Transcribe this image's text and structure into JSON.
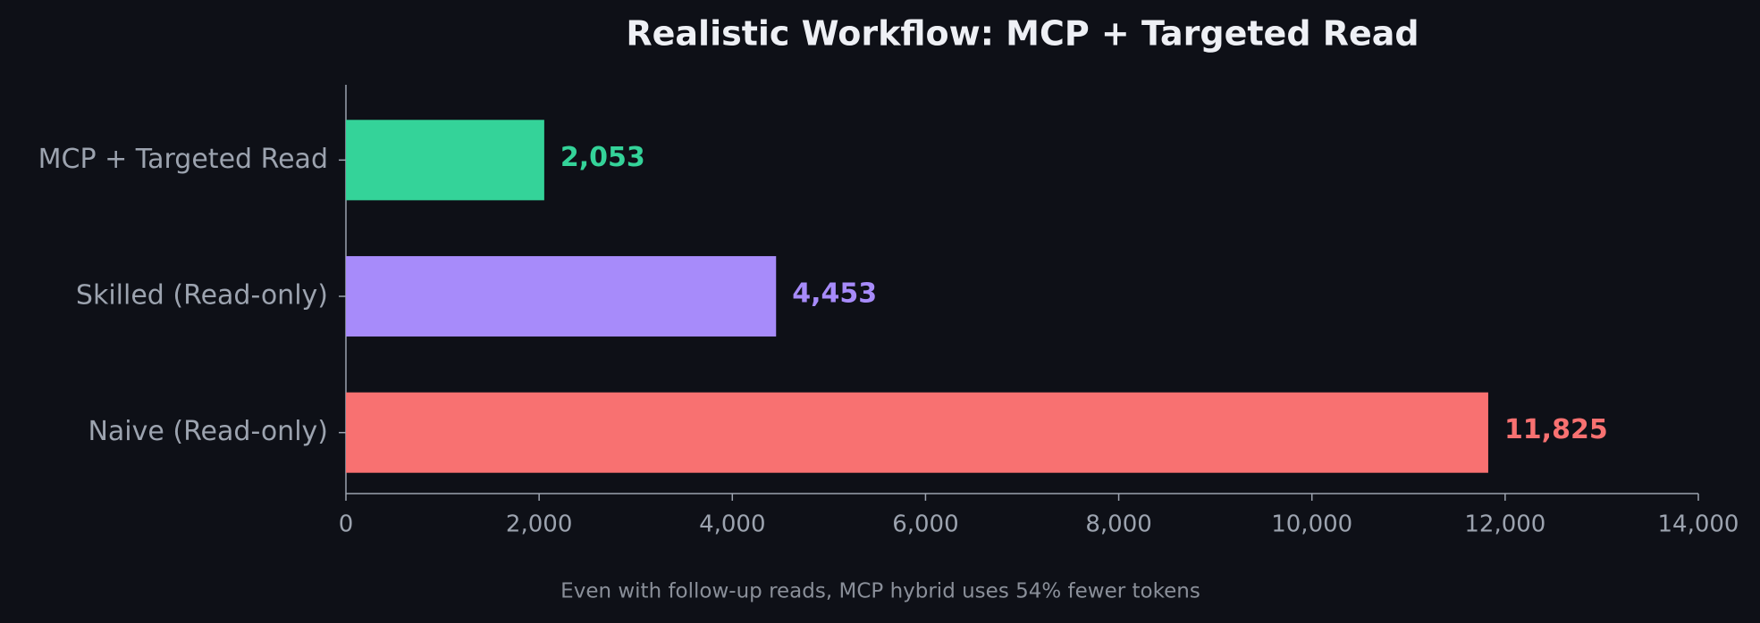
{
  "chart_data": {
    "type": "bar",
    "orientation": "horizontal",
    "title": "Realistic Workflow: MCP + Targeted Read",
    "annotation": "Even with follow-up reads, MCP hybrid uses 54% fewer tokens",
    "categories": [
      "MCP + Targeted Read",
      "Skilled (Read-only)",
      "Naive (Read-only)"
    ],
    "values": [
      2053,
      4453,
      11825
    ],
    "value_labels": [
      "2,053",
      "4,453",
      "11,825"
    ],
    "colors": [
      "#34d399",
      "#a78bfa",
      "#f87171"
    ],
    "xlim": [
      0,
      14000
    ],
    "xticks": [
      0,
      {
        "value": 2000,
        "label": "2,000"
      },
      {
        "value": 4000,
        "label": "4,000"
      },
      {
        "value": 6000,
        "label": "6,000"
      },
      {
        "value": 8000,
        "label": "8,000"
      },
      {
        "value": 10000,
        "label": "10,000"
      },
      {
        "value": 12000,
        "label": "12,000"
      },
      {
        "value": 14000,
        "label": "14,000"
      }
    ],
    "grid": false
  }
}
